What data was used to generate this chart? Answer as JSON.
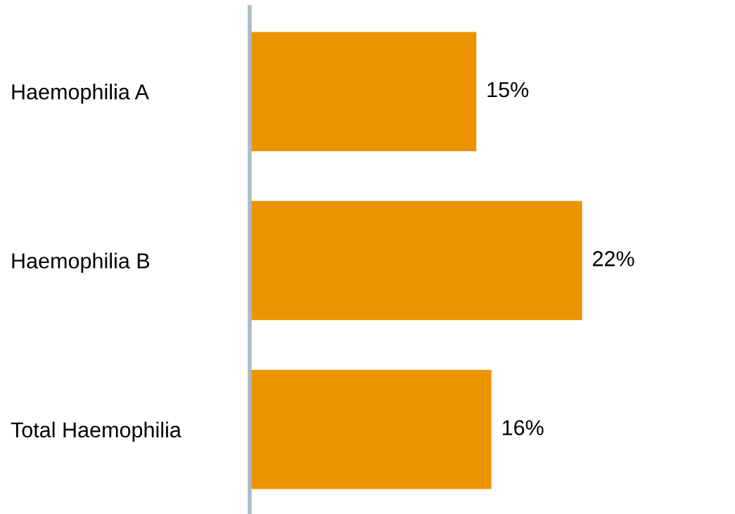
{
  "chart_data": {
    "type": "bar",
    "orientation": "horizontal",
    "categories": [
      "Haemophilia A",
      "Haemophilia B",
      "Total Haemophilia"
    ],
    "values": [
      15,
      22,
      16
    ],
    "value_labels": [
      "15%",
      "22%",
      "16%"
    ],
    "color": "#eb9400",
    "grid": false,
    "legend": false
  }
}
